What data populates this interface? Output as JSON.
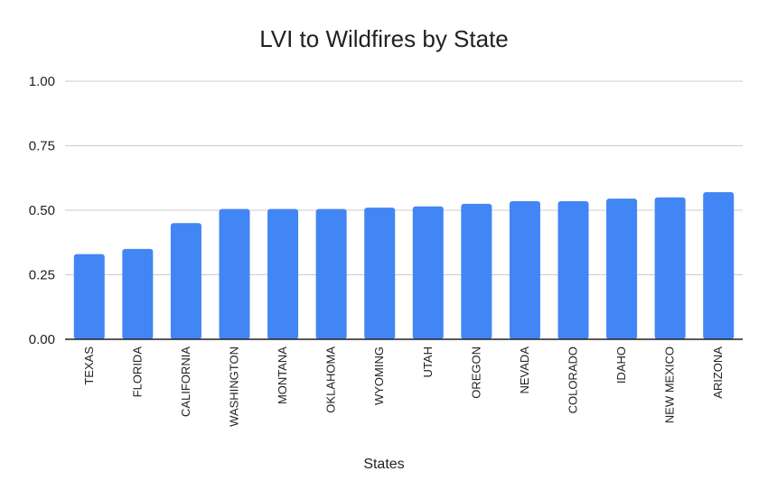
{
  "chart_data": {
    "type": "bar",
    "title": "LVI to Wildfires by State",
    "xlabel": "States",
    "ylabel": "",
    "ylim": [
      0,
      1.0
    ],
    "yticks": [
      "0.00",
      "0.25",
      "0.50",
      "0.75",
      "1.00"
    ],
    "grid": true,
    "legend": "none",
    "bar_color": "#4285f4",
    "categories": [
      "TEXAS",
      "FLORIDA",
      "CALIFORNIA",
      "WASHINGTON",
      "MONTANA",
      "OKLAHOMA",
      "WYOMING",
      "UTAH",
      "OREGON",
      "NEVADA",
      "COLORADO",
      "IDAHO",
      "NEW MEXICO",
      "ARIZONA"
    ],
    "values": [
      0.33,
      0.35,
      0.45,
      0.505,
      0.505,
      0.505,
      0.51,
      0.515,
      0.525,
      0.535,
      0.535,
      0.545,
      0.55,
      0.57
    ]
  }
}
